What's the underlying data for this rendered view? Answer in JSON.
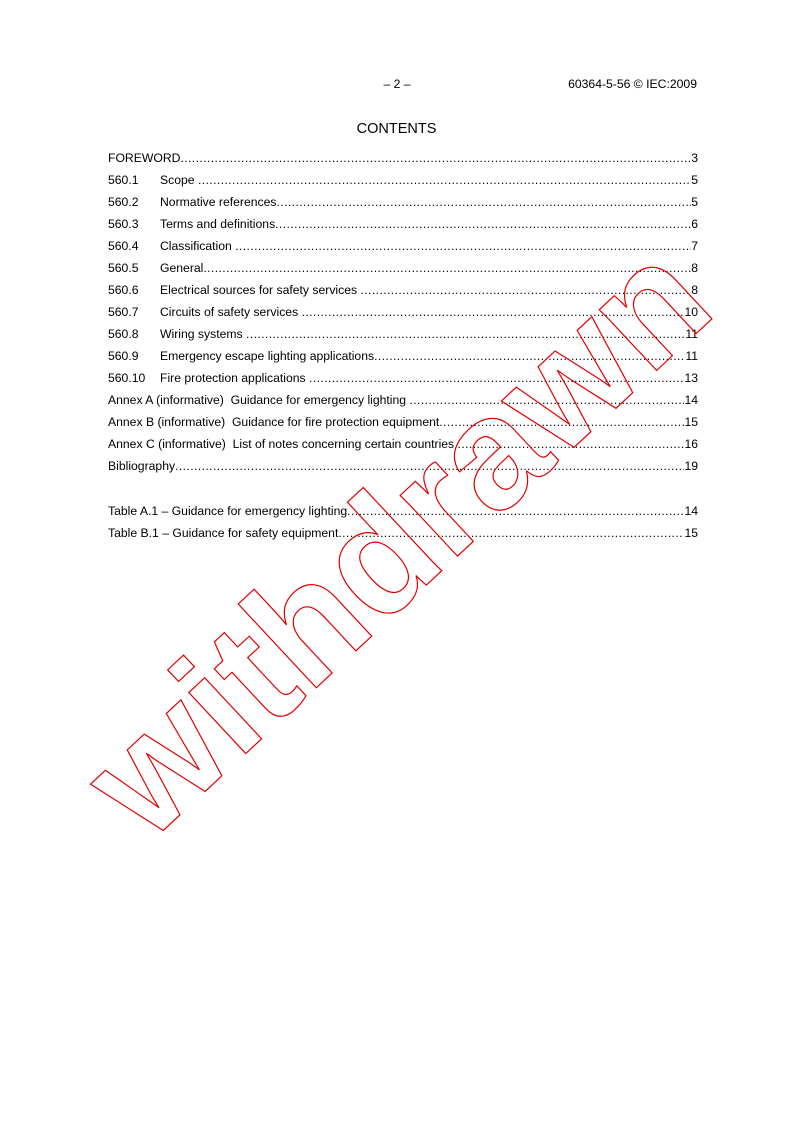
{
  "header": {
    "page_number": "– 2 –",
    "standard": "60364-5-56 © IEC:2009"
  },
  "title": "CONTENTS",
  "entries": [
    {
      "num": "",
      "text": "FOREWORD",
      "page": "3"
    },
    {
      "num": "560.1",
      "text": "Scope ",
      "page": "5"
    },
    {
      "num": "560.2",
      "text": "Normative references",
      "page": "5"
    },
    {
      "num": "560.3",
      "text": "Terms and definitions",
      "page": "6"
    },
    {
      "num": "560.4",
      "text": "Classification ",
      "page": "7"
    },
    {
      "num": "560.5",
      "text": "General",
      "page": "8"
    },
    {
      "num": "560.6",
      "text": "Electrical sources for safety services ",
      "page": "8"
    },
    {
      "num": "560.7",
      "text": "Circuits of safety services ",
      "page": "10"
    },
    {
      "num": "560.8",
      "text": "Wiring systems ",
      "page": "11"
    },
    {
      "num": "560.9",
      "text": "Emergency escape lighting applications",
      "page": "11"
    },
    {
      "num": "560.10",
      "text": "Fire protection applications ",
      "page": "13"
    },
    {
      "num": "",
      "text": "Annex A (informative)  Guidance for emergency lighting ",
      "page": "14"
    },
    {
      "num": "",
      "text": "Annex B (informative)  Guidance for fire protection equipment",
      "page": "15"
    },
    {
      "num": "",
      "text": "Annex C (informative)  List of notes concerning certain countries ",
      "page": "16"
    },
    {
      "num": "",
      "text": "Bibliography",
      "page": "19"
    }
  ],
  "tables": [
    {
      "text": "Table A.1 – Guidance for emergency lighting",
      "page": "14"
    },
    {
      "text": "Table B.1 – Guidance for safety equipment",
      "page": "15"
    }
  ],
  "watermark": {
    "text": "withdrawn",
    "color": "#e00000"
  }
}
